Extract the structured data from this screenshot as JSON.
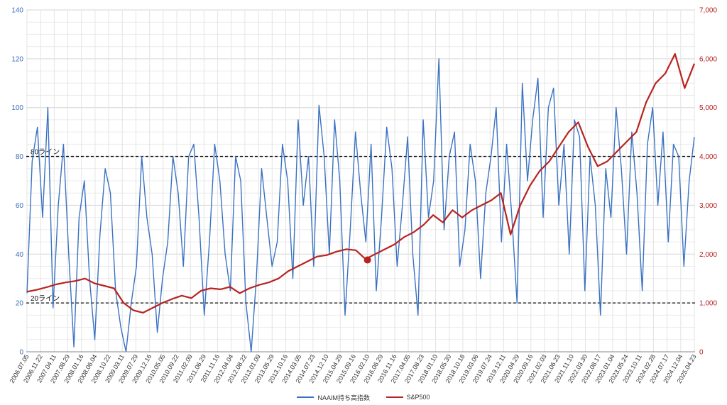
{
  "chart_data": {
    "type": "line",
    "title": "",
    "xlabel": "",
    "ylabel": "",
    "x_tick_labels": [
      "2006.07.05",
      "2006.11.22",
      "2007.04.11",
      "2007.08.29",
      "2008.01.16",
      "2008.06.04",
      "2008.10.22",
      "2009.03.11",
      "2009.07.29",
      "2009.12.16",
      "2010.05.05",
      "2010.09.22",
      "2011.02.09",
      "2011.06.29",
      "2011.11.16",
      "2012.04.04",
      "2012.08.22",
      "2013.01.09",
      "2013.05.29",
      "2013.10.16",
      "2014.03.05",
      "2014.07.23",
      "2014.12.10",
      "2015.04.29",
      "2015.09.16",
      "2016.02.10",
      "2016.06.29",
      "2016.11.16",
      "2017.04.05",
      "2017.08.23",
      "2018.01.10",
      "2018.05.30",
      "2018.10.18",
      "2019.03.06",
      "2019.07.24",
      "2019.12.11",
      "2020.04.29",
      "2020.09.16",
      "2021.02.03",
      "2021.06.23",
      "2021.11.10",
      "2022.03.30",
      "2022.08.17",
      "2023.01.04",
      "2023.05.24",
      "2023.10.11",
      "2024.02.28",
      "2024.07.17",
      "2024.12.04",
      "2025.04.23"
    ],
    "y_left": {
      "min": 0,
      "max": 140,
      "ticks": [
        "0",
        "20",
        "40",
        "60",
        "80",
        "100",
        "120",
        "140"
      ],
      "values": [
        0,
        20,
        40,
        60,
        80,
        100,
        120,
        140
      ]
    },
    "y_right": {
      "min": 0,
      "max": 7000,
      "ticks": [
        "0",
        "1,000",
        "2,000",
        "3,000",
        "4,000",
        "5,000",
        "6,000",
        "7,000"
      ],
      "values": [
        0,
        1000,
        2000,
        3000,
        4000,
        5000,
        6000,
        7000
      ]
    },
    "grid": true,
    "legend_position": "bottom",
    "reference_lines": [
      {
        "label": "80ライン",
        "value": 80,
        "axis": "left"
      },
      {
        "label": "20ライン",
        "value": 20,
        "axis": "left"
      }
    ],
    "highlight_point": {
      "x_index": 25,
      "series": "S&P500",
      "value": 1880
    },
    "series": [
      {
        "name": "NAAIM持ち高指数",
        "axis": "left",
        "color": "#3a72c2",
        "values": [
          24,
          78,
          92,
          55,
          100,
          18,
          60,
          85,
          40,
          2,
          55,
          70,
          30,
          5,
          48,
          75,
          65,
          25,
          10,
          0,
          20,
          35,
          80,
          55,
          40,
          8,
          30,
          45,
          80,
          65,
          35,
          80,
          85,
          55,
          15,
          45,
          85,
          70,
          40,
          25,
          80,
          70,
          20,
          0,
          30,
          75,
          55,
          35,
          45,
          85,
          70,
          30,
          95,
          60,
          80,
          35,
          101,
          80,
          40,
          95,
          70,
          15,
          50,
          90,
          65,
          45,
          85,
          25,
          55,
          92,
          75,
          35,
          60,
          88,
          40,
          15,
          95,
          55,
          70,
          120,
          50,
          80,
          90,
          35,
          50,
          85,
          70,
          30,
          65,
          80,
          100,
          45,
          85,
          55,
          20,
          110,
          70,
          95,
          112,
          55,
          100,
          108,
          60,
          85,
          40,
          95,
          88,
          25,
          80,
          60,
          15,
          75,
          55,
          100,
          75,
          40,
          90,
          65,
          25,
          85,
          100,
          60,
          90,
          45,
          85,
          80,
          35,
          70,
          88
        ]
      },
      {
        "name": "S&P500",
        "axis": "right",
        "color": "#b8231f",
        "values": [
          1230,
          1270,
          1320,
          1380,
          1420,
          1450,
          1500,
          1400,
          1350,
          1300,
          1000,
          850,
          800,
          900,
          1000,
          1080,
          1150,
          1100,
          1250,
          1300,
          1280,
          1330,
          1200,
          1300,
          1370,
          1420,
          1500,
          1650,
          1750,
          1850,
          1950,
          1980,
          2050,
          2100,
          2080,
          1900,
          2000,
          2100,
          2200,
          2350,
          2450,
          2600,
          2800,
          2650,
          2900,
          2750,
          2900,
          3000,
          3100,
          3250,
          2400,
          3000,
          3400,
          3700,
          3900,
          4200,
          4500,
          4700,
          4200,
          3800,
          3900,
          4100,
          4300,
          4500,
          5100,
          5500,
          5700,
          6100,
          5400,
          5900
        ]
      }
    ]
  }
}
